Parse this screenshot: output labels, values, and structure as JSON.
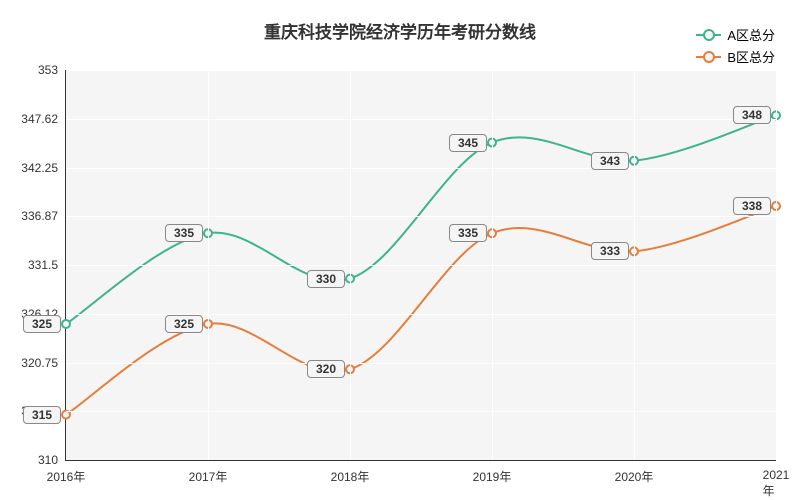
{
  "chart": {
    "type": "line",
    "title": "重庆科技学院经济学历年考研分数线",
    "title_fontsize": 17,
    "title_color": "#333333",
    "background_color": "#ffffff",
    "plot_background_color": "#f5f5f5",
    "grid_color": "#fefefe",
    "axis_color": "#333333",
    "label_fontsize": 12,
    "label_color": "#333333",
    "x": {
      "categories": [
        "2016年",
        "2017年",
        "2018年",
        "2019年",
        "2020年",
        "2021年"
      ],
      "positions_pct": [
        0,
        20,
        40,
        60,
        80,
        100
      ]
    },
    "y": {
      "min": 310,
      "max": 353,
      "ticks": [
        310,
        315.37,
        320.75,
        326.12,
        331.5,
        336.87,
        342.25,
        347.62,
        353
      ],
      "tick_labels": [
        "310",
        "315.37",
        "320.75",
        "326.12",
        "331.5",
        "336.87",
        "342.25",
        "347.62",
        "353"
      ]
    },
    "series": [
      {
        "name": "A区总分",
        "color": "#3eb489",
        "line_width": 2,
        "marker": "hollow-circle",
        "marker_size": 8,
        "values": [
          325,
          335,
          330,
          345,
          343,
          348
        ]
      },
      {
        "name": "B区总分",
        "color": "#e67e3b",
        "line_width": 2,
        "marker": "hollow-circle",
        "marker_size": 8,
        "values": [
          315,
          325,
          320,
          335,
          333,
          338
        ]
      }
    ],
    "data_label": {
      "background": "#f5f5f5",
      "border_color": "#888888",
      "border_radius": 4,
      "fontsize": 12,
      "font_weight": "bold"
    },
    "legend": {
      "position": "top-right",
      "fontsize": 13
    }
  }
}
